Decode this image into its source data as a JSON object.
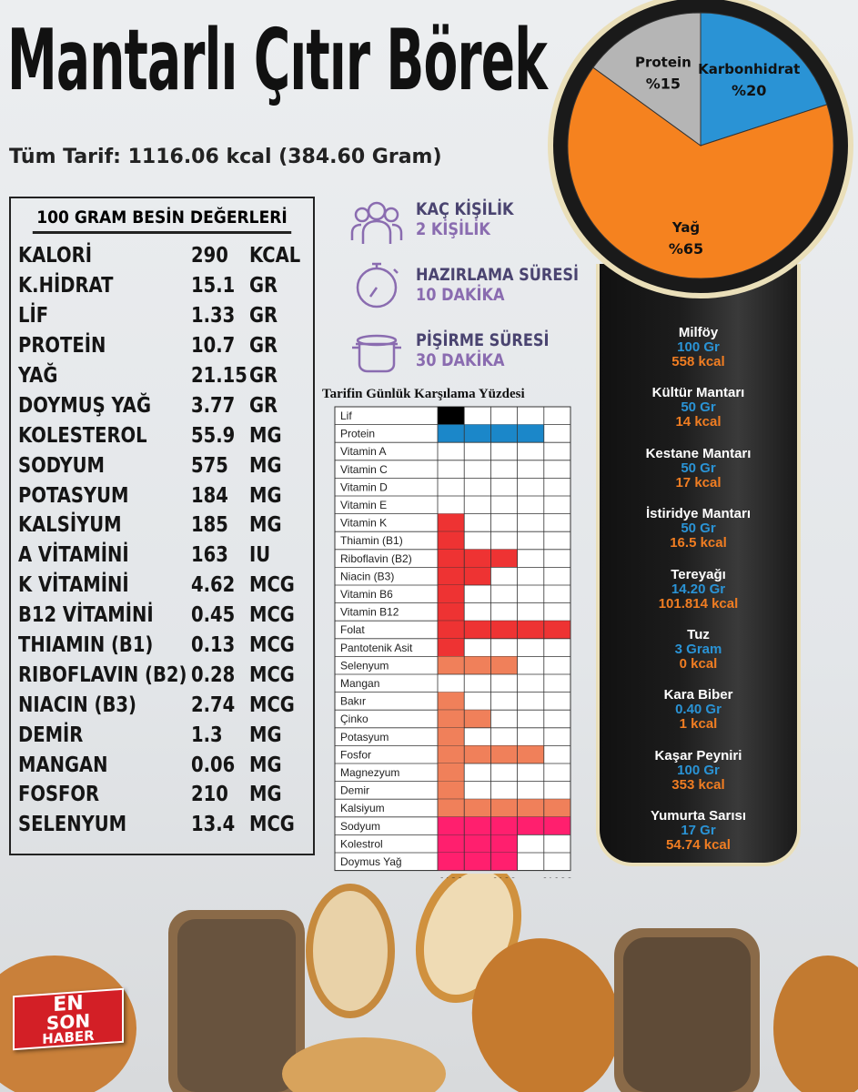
{
  "title": "Mantarlı Çıtır Börek",
  "subtitle": "Tüm Tarif: 1116.06 kcal (384.60 Gram)",
  "nutrition": {
    "heading": "100 GRAM BESİN DEĞERLERİ",
    "rows": [
      {
        "name": "KALORİ",
        "value": "290",
        "unit": "KCAL"
      },
      {
        "name": "K.HİDRAT",
        "value": "15.1",
        "unit": "GR"
      },
      {
        "name": "LİF",
        "value": "1.33",
        "unit": "GR"
      },
      {
        "name": "PROTEİN",
        "value": "10.7",
        "unit": "GR"
      },
      {
        "name": "YAĞ",
        "value": "21.15",
        "unit": "GR"
      },
      {
        "name": "DOYMUŞ YAĞ",
        "value": "3.77",
        "unit": "GR"
      },
      {
        "name": "KOLESTEROL",
        "value": "55.9",
        "unit": "MG"
      },
      {
        "name": "SODYUM",
        "value": "575",
        "unit": "MG"
      },
      {
        "name": "POTASYUM",
        "value": "184",
        "unit": "MG"
      },
      {
        "name": "KALSİYUM",
        "value": "185",
        "unit": "MG"
      },
      {
        "name": "A VİTAMİNİ",
        "value": "163",
        "unit": "IU"
      },
      {
        "name": "K VİTAMİNİ",
        "value": "4.62",
        "unit": "MCG"
      },
      {
        "name": "B12 VİTAMİNİ",
        "value": "0.45",
        "unit": "MCG"
      },
      {
        "name": "THIAMIN (B1)",
        "value": "0.13",
        "unit": "MCG"
      },
      {
        "name": "RIBOFLAVIN (B2)",
        "value": "0.28",
        "unit": "MCG"
      },
      {
        "name": "NIACIN (B3)",
        "value": "2.74",
        "unit": "MCG"
      },
      {
        "name": "DEMİR",
        "value": "1.3",
        "unit": "MG"
      },
      {
        "name": "MANGAN",
        "value": "0.06",
        "unit": "MG"
      },
      {
        "name": "FOSFOR",
        "value": "210",
        "unit": "MG"
      },
      {
        "name": "SELENYUM",
        "value": "13.4",
        "unit": "MCG"
      }
    ]
  },
  "info": [
    {
      "icon": "people-icon",
      "label": "KAÇ KİŞİLİK",
      "value": "2 KİŞİLİK"
    },
    {
      "icon": "stopwatch-icon",
      "label": "HAZIRLAMA SÜRESİ",
      "value": "10 DAKİKA"
    },
    {
      "icon": "cooking-pot-icon",
      "label": "PİŞİRME SÜRESİ",
      "value": "30 DAKİKA"
    }
  ],
  "ingredients": [
    {
      "name": "Milföy",
      "amount": "100 Gr",
      "kcal": "558 kcal"
    },
    {
      "name": "Kültür Mantarı",
      "amount": "50 Gr",
      "kcal": "14 kcal"
    },
    {
      "name": "Kestane Mantarı",
      "amount": "50 Gr",
      "kcal": "17 kcal"
    },
    {
      "name": "İstiridye Mantarı",
      "amount": "50 Gr",
      "kcal": "16.5 kcal"
    },
    {
      "name": "Tereyağı",
      "amount": "14.20 Gr",
      "kcal": "101.814 kcal"
    },
    {
      "name": "Tuz",
      "amount": "3 Gram",
      "kcal": "0 kcal"
    },
    {
      "name": "Kara Biber",
      "amount": "0.40 Gr",
      "kcal": "1 kcal"
    },
    {
      "name": "Kaşar Peyniri",
      "amount": "100 Gr",
      "kcal": "353 kcal"
    },
    {
      "name": "Yumurta Sarısı",
      "amount": "17 Gr",
      "kcal": "54.74 kcal"
    }
  ],
  "logo": {
    "line1": "EN",
    "line2": "SON",
    "line3": "HABER"
  },
  "chart_data": [
    {
      "type": "pie",
      "slices": [
        {
          "label": "Karbonhidrat",
          "value_label": "%20",
          "value": 20,
          "color": "#2a93d5"
        },
        {
          "label": "Yağ",
          "value_label": "%65",
          "value": 65,
          "color": "#f5821f"
        },
        {
          "label": "Protein",
          "value_label": "%15",
          "value": 15,
          "color": "#b5b5b5"
        }
      ]
    },
    {
      "type": "bar",
      "orientation": "horizontal",
      "title": "Tarifin Günlük Karşılama Yüzdesi",
      "xlim": [
        0,
        100
      ],
      "grid": true,
      "tick_values": [
        20,
        60,
        100
      ],
      "tick_labels": [
        "%20",
        "%60",
        "%100"
      ],
      "categories": [
        "Lif",
        "Protein",
        "Vitamin A",
        "Vitamin C",
        "Vitamin D",
        "Vitamin E",
        "Vitamin K",
        "Thiamin (B1)",
        "Riboflavin (B2)",
        "Niacin (B3)",
        "Vitamin B6",
        "Vitamin B12",
        "Folat",
        "Pantotenik Asit",
        "Selenyum",
        "Mangan",
        "Bakır",
        "Çinko",
        "Potasyum",
        "Fosfor",
        "Magnezyum",
        "Demir",
        "Kalsiyum",
        "Sodyum",
        "Kolestrol",
        "Doymus Yağ"
      ],
      "values": [
        20,
        80,
        0,
        0,
        0,
        0,
        20,
        20,
        60,
        40,
        20,
        20,
        100,
        20,
        60,
        0,
        20,
        40,
        20,
        80,
        20,
        20,
        100,
        100,
        60,
        60
      ],
      "colors": [
        "#000000",
        "#1b87c9",
        "#ee3333",
        "#ee3333",
        "#ee3333",
        "#ee3333",
        "#ee3333",
        "#ee3333",
        "#ee3333",
        "#ee3333",
        "#ee3333",
        "#ee3333",
        "#ee3333",
        "#ee3333",
        "#f0805a",
        "#f0805a",
        "#f0805a",
        "#f0805a",
        "#f0805a",
        "#f0805a",
        "#f0805a",
        "#f0805a",
        "#f0805a",
        "#ff1f6e",
        "#ff1f6e",
        "#ff1f6e"
      ]
    }
  ]
}
